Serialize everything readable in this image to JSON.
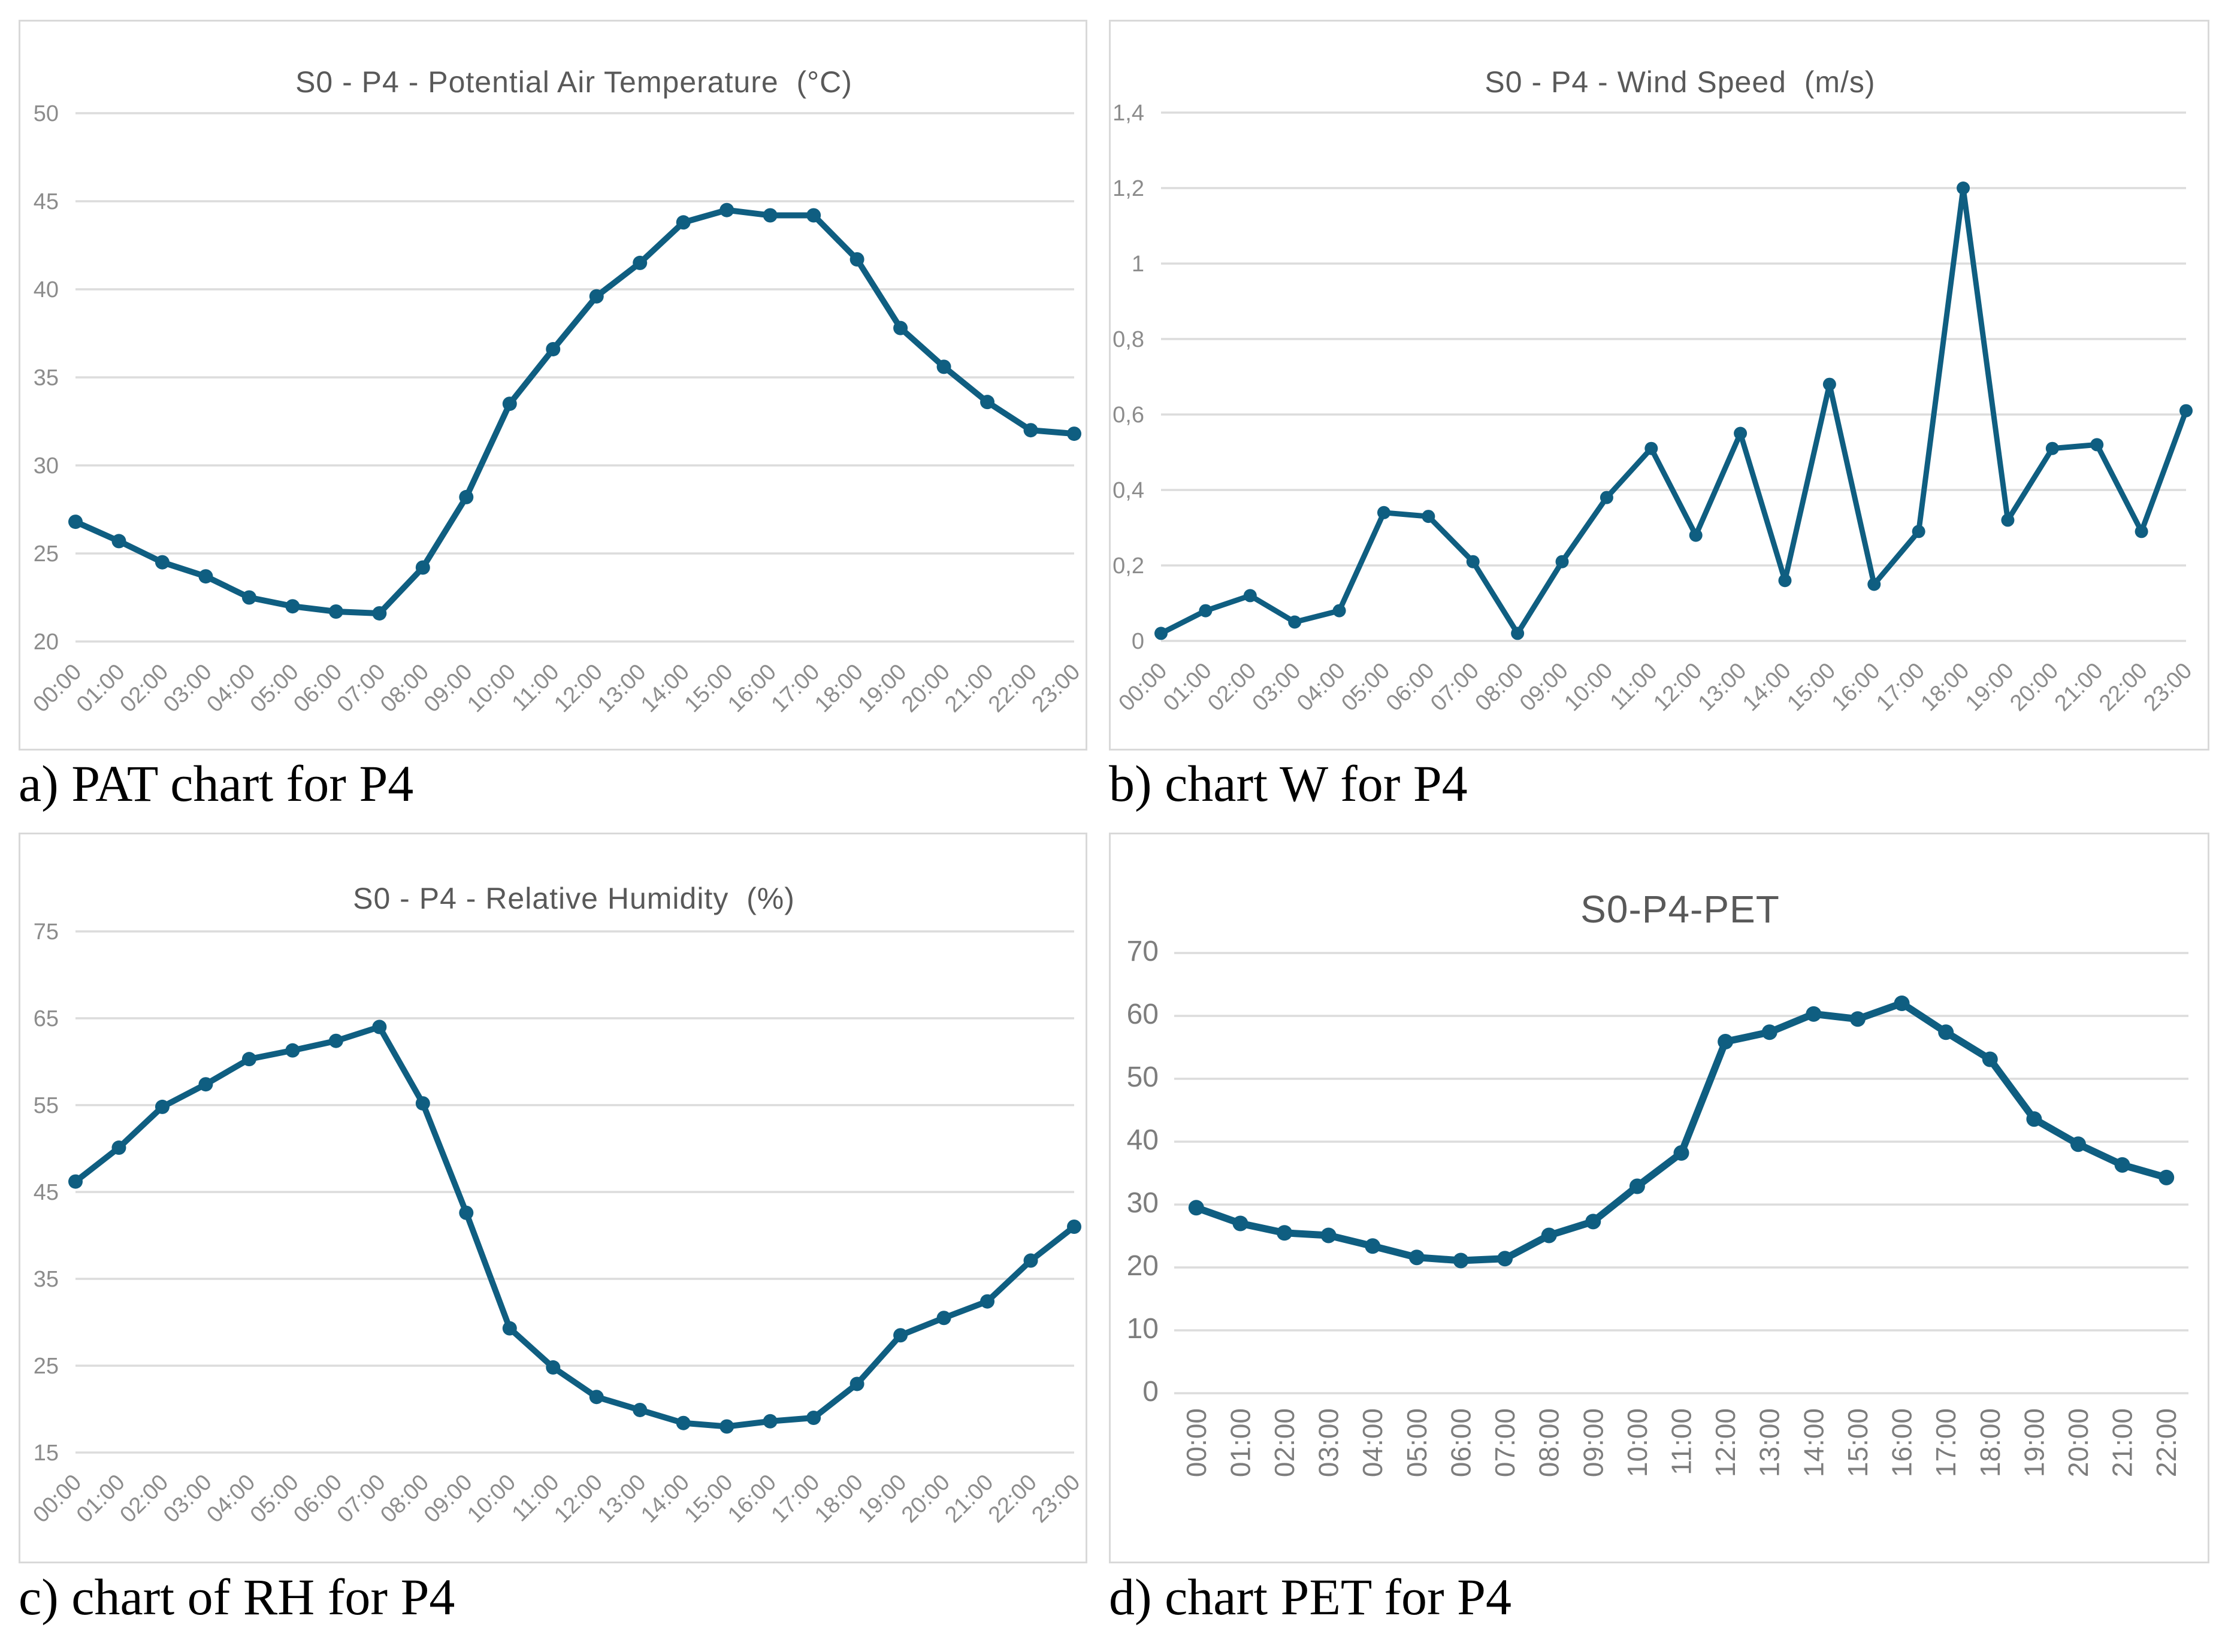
{
  "captions": {
    "a": "a) PAT chart for P4",
    "b": "b) chart W for P4",
    "c": "c) chart of RH for P4",
    "d": "d) chart PET for P4"
  },
  "colors": {
    "line": "#0F5E81",
    "grid": "#DCDCDC",
    "title": "#595959",
    "tick": "#8C8C8C",
    "tick_dark": "#7D7D7D",
    "panel_border": "#D9D9D9",
    "caption": "#000000",
    "background": "#FFFFFF"
  },
  "chart_data": [
    {
      "type": "line",
      "title": "S0 - P4 - Potential Air Temperature  (°C)",
      "x": [
        "00:00",
        "01:00",
        "02:00",
        "03:00",
        "04:00",
        "05:00",
        "06:00",
        "07:00",
        "08:00",
        "09:00",
        "10:00",
        "11:00",
        "12:00",
        "13:00",
        "14:00",
        "15:00",
        "16:00",
        "17:00",
        "18:00",
        "19:00",
        "20:00",
        "21:00",
        "22:00",
        "23:00"
      ],
      "values": [
        26.8,
        25.7,
        24.5,
        23.7,
        22.5,
        22.0,
        21.7,
        21.6,
        24.2,
        28.2,
        33.5,
        36.6,
        39.6,
        41.5,
        43.8,
        44.5,
        44.2,
        44.2,
        41.7,
        37.8,
        35.6,
        33.6,
        32.0,
        31.8
      ],
      "ylim": [
        20,
        50
      ],
      "y_tick_values": [
        50,
        45,
        40,
        35,
        30,
        25,
        20
      ],
      "y_tick_labels": [
        "50",
        "45",
        "40",
        "35",
        "30",
        "25",
        "20"
      ],
      "xlabel": "",
      "ylabel": "",
      "grid": true,
      "legend": "none",
      "marker": "circle",
      "x_label_rotation": -45,
      "points_between_ticks": false
    },
    {
      "type": "line",
      "title": "S0 - P4 - Wind Speed  (m/s)",
      "x": [
        "00:00",
        "01:00",
        "02:00",
        "03:00",
        "04:00",
        "05:00",
        "06:00",
        "07:00",
        "08:00",
        "09:00",
        "10:00",
        "11:00",
        "12:00",
        "13:00",
        "14:00",
        "15:00",
        "16:00",
        "17:00",
        "18:00",
        "19:00",
        "20:00",
        "21:00",
        "22:00",
        "23:00"
      ],
      "values": [
        0.02,
        0.08,
        0.12,
        0.05,
        0.08,
        0.34,
        0.33,
        0.21,
        0.02,
        0.21,
        0.38,
        0.51,
        0.28,
        0.55,
        0.16,
        0.68,
        0.15,
        0.29,
        1.2,
        0.32,
        0.51,
        0.52,
        0.29,
        0.61
      ],
      "ylim": [
        0,
        1.4
      ],
      "y_tick_values": [
        1.4,
        1.2,
        1.0,
        0.8,
        0.6,
        0.4,
        0.2,
        0
      ],
      "y_tick_labels": [
        "1,4",
        "1,2",
        "1",
        "0,8",
        "0,6",
        "0,4",
        "0,2",
        "0"
      ],
      "xlabel": "",
      "ylabel": "",
      "grid": true,
      "legend": "none",
      "marker": "circle",
      "x_label_rotation": -45,
      "points_between_ticks": false
    },
    {
      "type": "line",
      "title": "S0 - P4 - Relative Humidity  (%)",
      "x": [
        "00:00",
        "01:00",
        "02:00",
        "03:00",
        "04:00",
        "05:00",
        "06:00",
        "07:00",
        "08:00",
        "09:00",
        "10:00",
        "11:00",
        "12:00",
        "13:00",
        "14:00",
        "15:00",
        "16:00",
        "17:00",
        "18:00",
        "19:00",
        "20:00",
        "21:00",
        "22:00",
        "23:00"
      ],
      "values": [
        46.2,
        50.1,
        54.8,
        57.4,
        60.3,
        61.3,
        62.4,
        64.0,
        55.2,
        42.6,
        29.3,
        24.8,
        21.4,
        19.9,
        18.4,
        18.0,
        18.6,
        19.0,
        22.9,
        28.5,
        30.5,
        32.4,
        37.1,
        41.0
      ],
      "ylim": [
        15,
        75
      ],
      "y_tick_values": [
        75,
        65,
        55,
        45,
        35,
        25,
        15
      ],
      "y_tick_labels": [
        "75",
        "65",
        "55",
        "45",
        "35",
        "25",
        "15"
      ],
      "xlabel": "",
      "ylabel": "",
      "grid": true,
      "legend": "none",
      "marker": "circle",
      "x_label_rotation": -45,
      "points_between_ticks": false
    },
    {
      "type": "line",
      "title": "S0-P4-PET",
      "x": [
        "00:00",
        "01:00",
        "02:00",
        "03:00",
        "04:00",
        "05:00",
        "06:00",
        "07:00",
        "08:00",
        "09:00",
        "10:00",
        "11:00",
        "12:00",
        "13:00",
        "14:00",
        "15:00",
        "16:00",
        "17:00",
        "18:00",
        "19:00",
        "20:00",
        "21:00",
        "22:00"
      ],
      "values": [
        29.5,
        27.0,
        25.5,
        25.1,
        23.4,
        21.6,
        21.1,
        21.4,
        25.1,
        27.3,
        32.9,
        38.2,
        55.9,
        57.4,
        60.3,
        59.5,
        62.0,
        57.4,
        53.1,
        43.6,
        39.6,
        36.3,
        34.3
      ],
      "ylim": [
        0,
        70
      ],
      "y_tick_values": [
        70,
        60,
        50,
        40,
        30,
        20,
        10,
        0
      ],
      "y_tick_labels": [
        "70",
        "60",
        "50",
        "40",
        "30",
        "20",
        "10",
        "0"
      ],
      "xlabel": "",
      "ylabel": "",
      "grid": true,
      "legend": "none",
      "marker": "circle",
      "x_label_rotation": -90,
      "points_between_ticks": true
    }
  ]
}
